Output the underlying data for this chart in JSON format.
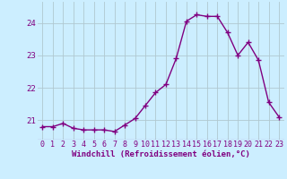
{
  "x": [
    0,
    1,
    2,
    3,
    4,
    5,
    6,
    7,
    8,
    9,
    10,
    11,
    12,
    13,
    14,
    15,
    16,
    17,
    18,
    19,
    20,
    21,
    22,
    23
  ],
  "y": [
    20.8,
    20.8,
    20.9,
    20.75,
    20.7,
    20.7,
    20.7,
    20.65,
    20.85,
    21.05,
    21.45,
    21.85,
    22.1,
    22.9,
    24.05,
    24.25,
    24.2,
    24.2,
    23.7,
    23.0,
    23.4,
    22.85,
    21.55,
    21.1
  ],
  "line_color": "#800080",
  "marker": "+",
  "marker_size": 4,
  "marker_color": "#800080",
  "bg_color": "#cceeff",
  "grid_color": "#b0c8d0",
  "xlabel": "Windchill (Refroidissement éolien,°C)",
  "xlabel_color": "#800080",
  "tick_color": "#800080",
  "ylim": [
    20.4,
    24.65
  ],
  "yticks": [
    21,
    22,
    23,
    24
  ],
  "xticks": [
    0,
    1,
    2,
    3,
    4,
    5,
    6,
    7,
    8,
    9,
    10,
    11,
    12,
    13,
    14,
    15,
    16,
    17,
    18,
    19,
    20,
    21,
    22,
    23
  ],
  "font_size": 6.5,
  "line_width": 1.0
}
